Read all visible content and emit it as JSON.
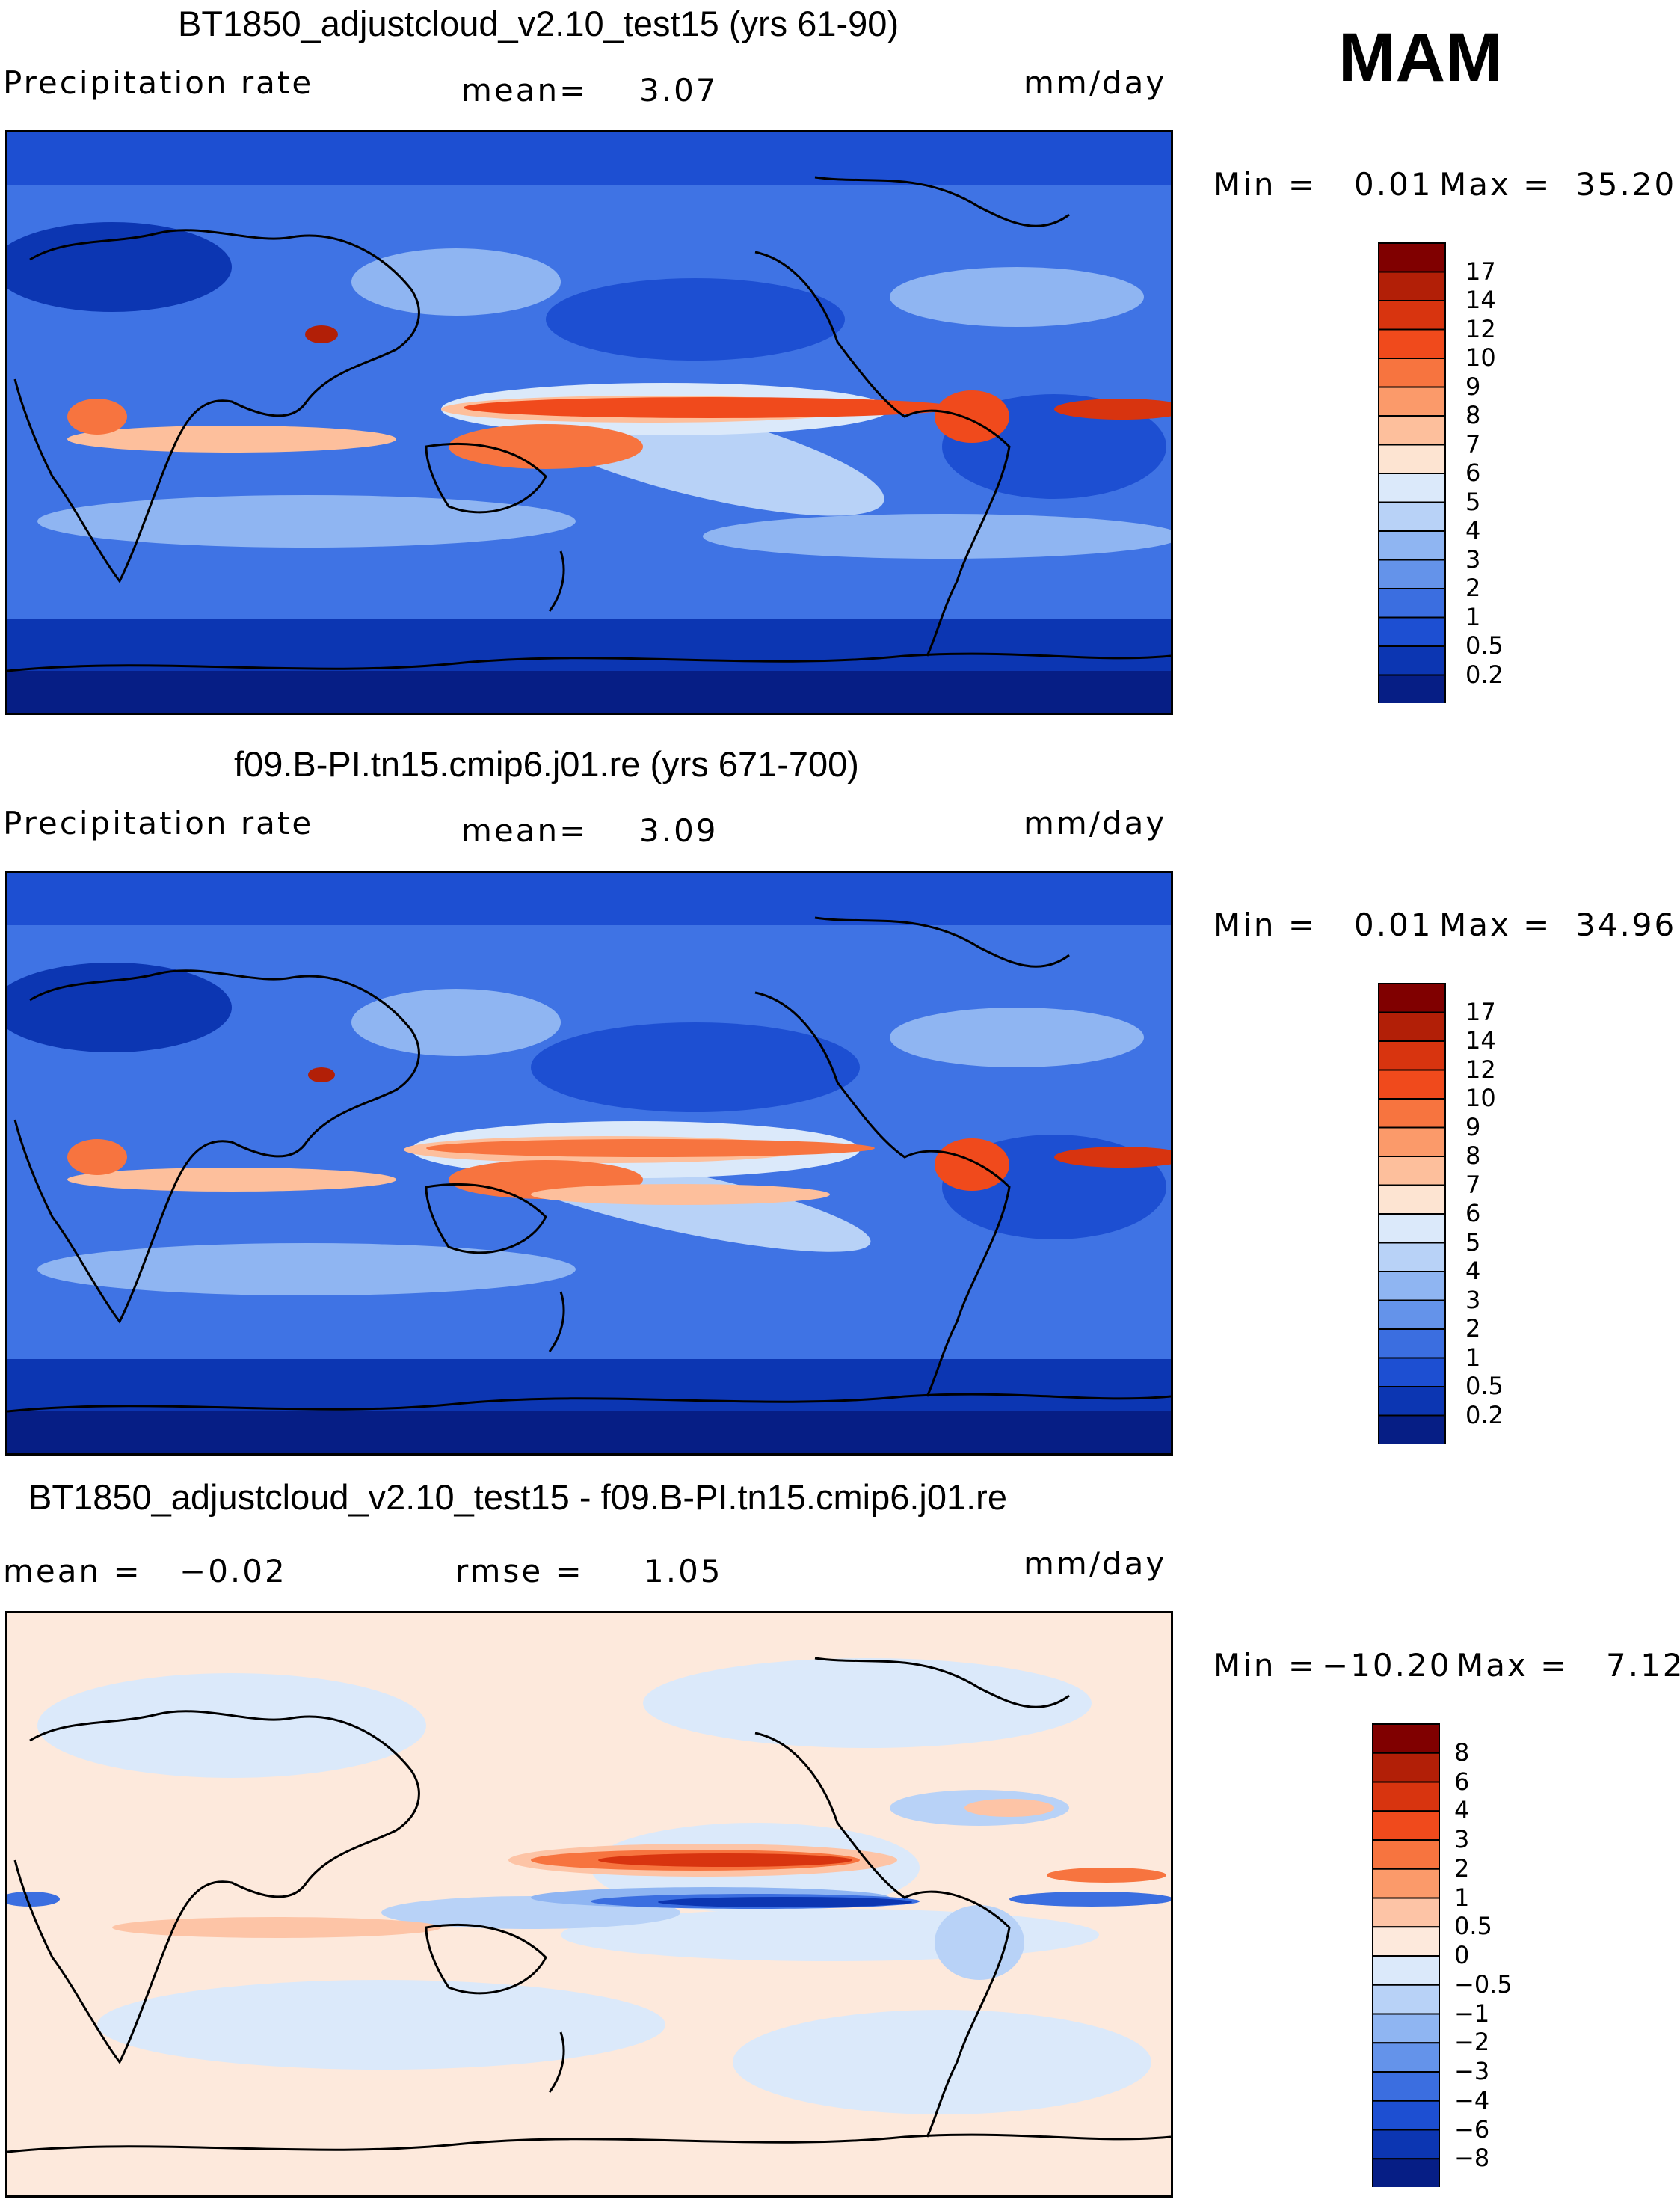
{
  "season": "MAM",
  "unit": "mm/day",
  "panels": [
    {
      "title": "BT1850_adjustcloud_v2.10_test15 (yrs 61-90)",
      "left_label": "Precipitation rate",
      "mid_label": "mean=",
      "mid_value": "3.07",
      "min_label": "Min =",
      "min_value": "0.01",
      "max_label": "Max =",
      "max_value": "35.20"
    },
    {
      "title": "f09.B-PI.tn15.cmip6.j01.re (yrs 671-700)",
      "left_label": "Precipitation rate",
      "mid_label": "mean=",
      "mid_value": "3.09",
      "min_label": "Min =",
      "min_value": "0.01",
      "max_label": "Max =",
      "max_value": "34.96"
    },
    {
      "title": "BT1850_adjustcloud_v2.10_test15 - f09.B-PI.tn15.cmip6.j01.re",
      "left_label": "mean =",
      "left_value": "−0.02",
      "mid_label": "rmse =",
      "mid_value": "1.05",
      "min_label": "Min =",
      "min_value": "−10.20",
      "max_label": "Max =",
      "max_value": "7.12"
    }
  ],
  "abs_colorbar": {
    "labels": [
      "17",
      "14",
      "12",
      "10",
      "9",
      "8",
      "7",
      "6",
      "5",
      "4",
      "3",
      "2",
      "1",
      "0.5",
      "0.2"
    ],
    "colors": [
      "#800000",
      "#b21f07",
      "#d8340f",
      "#f04a1c",
      "#f7743f",
      "#fb9a6a",
      "#fdbf9c",
      "#fde4d2",
      "#dbe9fa",
      "#b8d2f7",
      "#8fb5f2",
      "#6493ea",
      "#3b6ee0",
      "#1d4fd2",
      "#0c36b2",
      "#061e85"
    ]
  },
  "diff_colorbar": {
    "labels": [
      "8",
      "6",
      "4",
      "3",
      "2",
      "1",
      "0.5",
      "0",
      "−0.5",
      "−1",
      "−2",
      "−3",
      "−4",
      "−6",
      "−8"
    ],
    "colors": [
      "#800000",
      "#b21f07",
      "#d8340f",
      "#f04a1c",
      "#f7743f",
      "#fb9a6a",
      "#fdc4a6",
      "#fde9dc",
      "#dbe9fa",
      "#b8d2f7",
      "#8fb5f2",
      "#6493ea",
      "#3b6ee0",
      "#1d4fd2",
      "#0c36b2",
      "#061e85"
    ]
  }
}
